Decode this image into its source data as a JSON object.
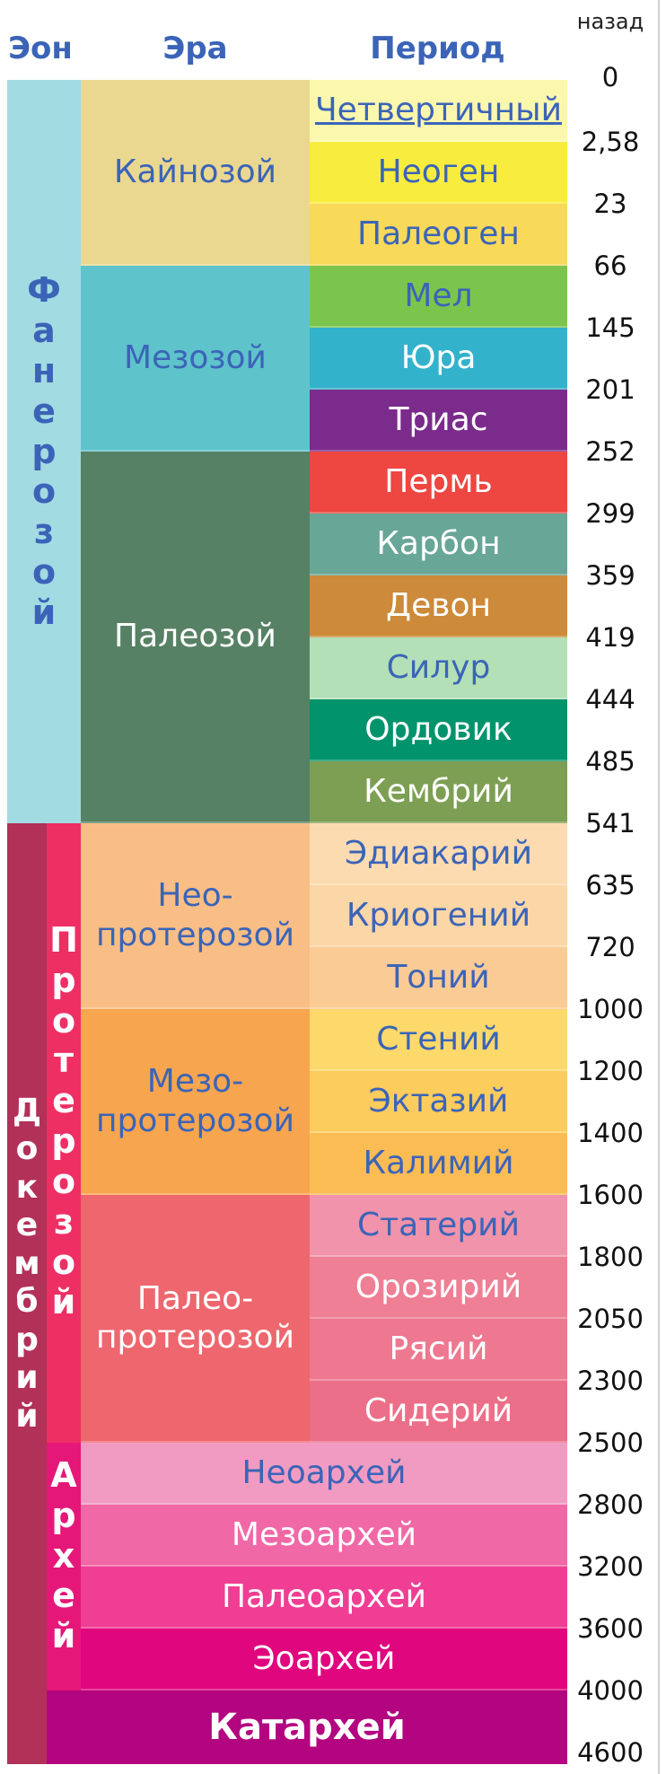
{
  "header": {
    "eon": "Эон",
    "era": "Эра",
    "period": "Период",
    "ago": "назад"
  },
  "eons": [
    {
      "label": "Фанерозой",
      "color": "#a3dbe2",
      "text_color": "#3b64b8",
      "start": 0,
      "end": 12
    },
    {
      "label": "Докембрий",
      "color": "#b13158",
      "text_color": "#ffffff",
      "start": 12,
      "end": 27
    }
  ],
  "sub_eons": [
    {
      "label": "Протерозой",
      "color": "#ee2f64",
      "text_color": "#ffffff",
      "start": 12,
      "end": 22
    },
    {
      "label": "Архей",
      "color": "#e5187a",
      "text_color": "#ffffff",
      "start": 22,
      "end": 26
    }
  ],
  "eras": [
    {
      "label": "Кайнозой",
      "color": "#ead891",
      "text_color": "#3b64b8",
      "start": 0,
      "end": 3
    },
    {
      "label": "Мезозой",
      "color": "#5ec3cb",
      "text_color": "#3b64b8",
      "start": 3,
      "end": 6
    },
    {
      "label": "Палеозой",
      "color": "#578164",
      "text_color": "#ffffff",
      "start": 6,
      "end": 12
    },
    {
      "label": "Нео-\nпротерозой",
      "color": "#f9be85",
      "text_color": "#3b64b8",
      "start": 12,
      "end": 15
    },
    {
      "label": "Мезо-\nпротерозой",
      "color": "#f8a54f",
      "text_color": "#3b64b8",
      "start": 15,
      "end": 18
    },
    {
      "label": "Палео-\nпротерозой",
      "color": "#ee676e",
      "text_color": "#ffffff",
      "start": 18,
      "end": 22
    }
  ],
  "periods": [
    {
      "label": "Четвертичный",
      "color": "#fbf7ad",
      "text_color": "#3b64b8",
      "link": true
    },
    {
      "label": "Неоген",
      "color": "#f8ed3e",
      "text_color": "#3b64b8"
    },
    {
      "label": "Палеоген",
      "color": "#f9d95a",
      "text_color": "#3b64b8"
    },
    {
      "label": "Мел",
      "color": "#7cc54d",
      "text_color": "#3b64b8"
    },
    {
      "label": "Юра",
      "color": "#33b2cb",
      "text_color": "#ffffff"
    },
    {
      "label": "Триас",
      "color": "#7b2b8b",
      "text_color": "#ffffff"
    },
    {
      "label": "Пермь",
      "color": "#ee4640",
      "text_color": "#ffffff"
    },
    {
      "label": "Карбон",
      "color": "#68a697",
      "text_color": "#ffffff"
    },
    {
      "label": "Девон",
      "color": "#cc8a3a",
      "text_color": "#ffffff"
    },
    {
      "label": "Силур",
      "color": "#b3e0b7",
      "text_color": "#3b64b8"
    },
    {
      "label": "Ордовик",
      "color": "#00936c",
      "text_color": "#ffffff"
    },
    {
      "label": "Кембрий",
      "color": "#7d9f54",
      "text_color": "#ffffff"
    },
    {
      "label": "Эдиакарий",
      "color": "#fcdbb0",
      "text_color": "#3b64b8"
    },
    {
      "label": "Криогений",
      "color": "#fbd6a6",
      "text_color": "#3b64b8"
    },
    {
      "label": "Тоний",
      "color": "#fbcb96",
      "text_color": "#3b64b8"
    },
    {
      "label": "Стений",
      "color": "#fcd96a",
      "text_color": "#3b64b8"
    },
    {
      "label": "Эктазий",
      "color": "#fccc5c",
      "text_color": "#3b64b8"
    },
    {
      "label": "Калимий",
      "color": "#fbbc54",
      "text_color": "#3b64b8"
    },
    {
      "label": "Статерий",
      "color": "#f093ab",
      "text_color": "#3b64b8"
    },
    {
      "label": "Орозирий",
      "color": "#ee7f95",
      "text_color": "#ffffff"
    },
    {
      "label": "Рясий",
      "color": "#ed7890",
      "text_color": "#ffffff"
    },
    {
      "label": "Сидерий",
      "color": "#ec6f89",
      "text_color": "#ffffff"
    }
  ],
  "archean_eras": [
    {
      "label": "Неоархей",
      "color": "#f29bc2",
      "text_color": "#3b64b8"
    },
    {
      "label": "Мезоархей",
      "color": "#f168a6",
      "text_color": "#ffffff"
    },
    {
      "label": "Палеоархей",
      "color": "#ef3e93",
      "text_color": "#ffffff"
    },
    {
      "label": "Эоархей",
      "color": "#e0067e",
      "text_color": "#ffffff"
    }
  ],
  "katarchean": {
    "label": "Катархей",
    "color": "#b3057f",
    "text_color": "#ffffff"
  },
  "ticks": [
    "0",
    "2,58",
    "23",
    "66",
    "145",
    "201",
    "252",
    "299",
    "359",
    "419",
    "444",
    "485",
    "541",
    "635",
    "720",
    "1000",
    "1200",
    "1400",
    "1600",
    "1800",
    "2050",
    "2300",
    "2500",
    "2800",
    "3200",
    "3600",
    "4000",
    "4600"
  ]
}
